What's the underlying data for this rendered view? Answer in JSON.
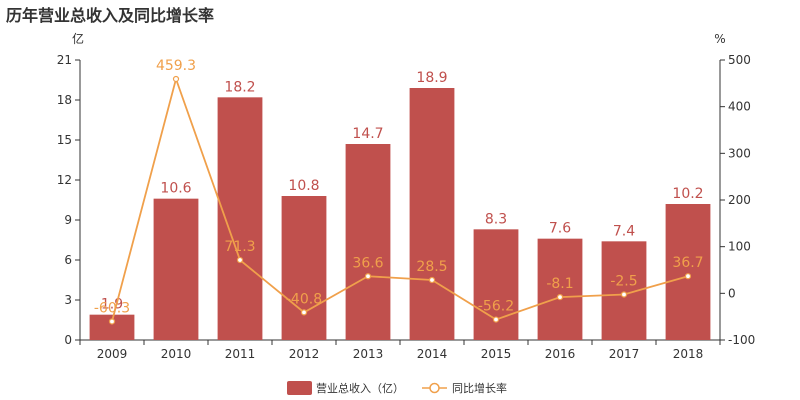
{
  "chart_data": {
    "type": "bar",
    "title": "历年营业总收入及同比增长率",
    "categories": [
      "2009",
      "2010",
      "2011",
      "2012",
      "2013",
      "2014",
      "2015",
      "2016",
      "2017",
      "2018"
    ],
    "y_left_unit": "亿",
    "y_right_unit": "%",
    "y_left_range": [
      0,
      21
    ],
    "y_left_ticks": [
      0,
      3,
      6,
      9,
      12,
      15,
      18,
      21
    ],
    "y_right_range": [
      -100,
      500
    ],
    "y_right_ticks": [
      -100,
      0,
      100,
      200,
      300,
      400,
      500
    ],
    "series": [
      {
        "name": "营业总收入（亿）",
        "type": "bar",
        "axis": "left",
        "color": "#c0504d",
        "values": [
          1.9,
          10.6,
          18.2,
          10.8,
          14.7,
          18.9,
          8.3,
          7.6,
          7.4,
          10.2
        ],
        "labels": [
          "1.9",
          "10.6",
          "18.2",
          "10.8",
          "14.7",
          "18.9",
          "8.3",
          "7.6",
          "7.4",
          "10.2"
        ]
      },
      {
        "name": "同比增长率",
        "type": "line",
        "axis": "right",
        "color": "#f0a04b",
        "values": [
          -60.3,
          459.3,
          71.3,
          -40.8,
          36.6,
          28.5,
          -56.2,
          -8.1,
          -2.5,
          36.7
        ],
        "labels": [
          "-60.3",
          "459.3",
          "71.3",
          "-40.8",
          "36.6",
          "28.5",
          "-56.2",
          "-8.1",
          "-2.5",
          "36.7"
        ]
      }
    ],
    "legend_position": "bottom-center",
    "grid": false
  }
}
